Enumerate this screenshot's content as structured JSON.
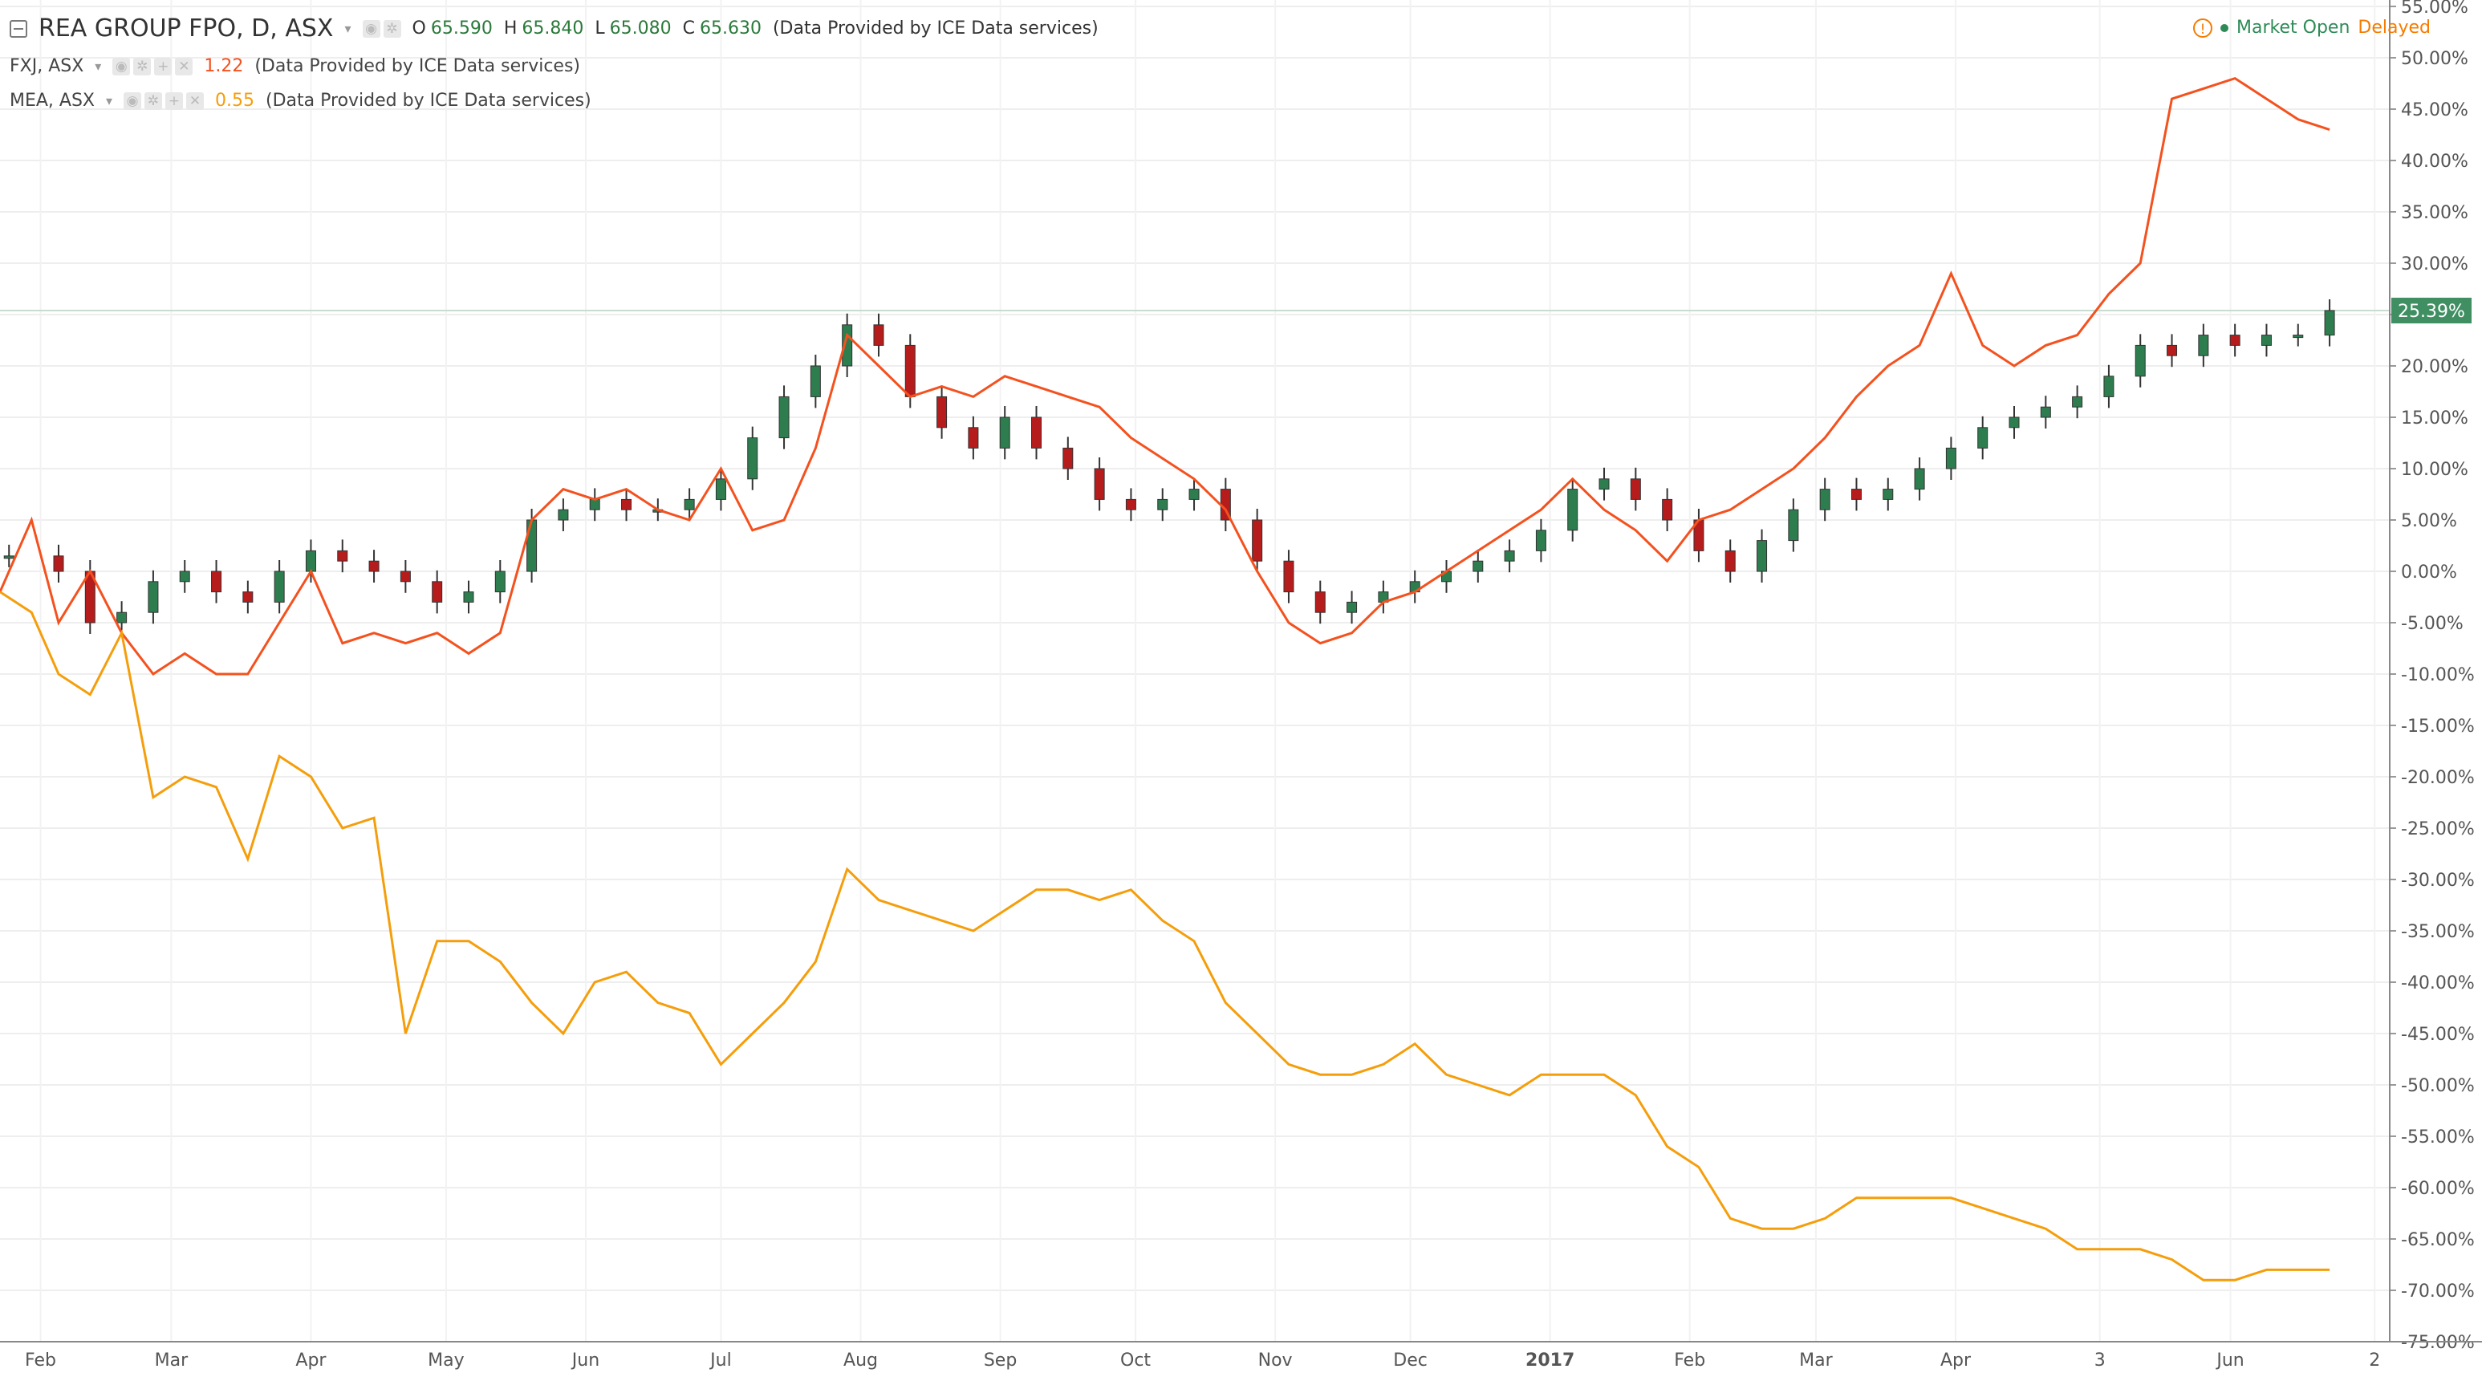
{
  "header": {
    "symbol": "REA GROUP FPO, D, ASX",
    "ohlc": [
      {
        "key": "O",
        "value": "65.590"
      },
      {
        "key": "H",
        "value": "65.840"
      },
      {
        "key": "L",
        "value": "65.080"
      },
      {
        "key": "C",
        "value": "65.630"
      }
    ],
    "provider": "(Data Provided by ICE Data services)",
    "compare": [
      {
        "symbol": "FXJ, ASX",
        "value": "1.22",
        "color": "#f4511e",
        "provider": "(Data Provided by ICE Data services)"
      },
      {
        "symbol": "MEA, ASX",
        "value": "0.55",
        "color": "#f59e0b",
        "provider": "(Data Provided by ICE Data services)"
      }
    ],
    "status_open": "Market Open",
    "status_delayed": "Delayed",
    "status_icon": "warning-icon",
    "colors": {
      "open": "#2e8b57",
      "delayed": "#f57c00"
    }
  },
  "chart_data": {
    "type": "line",
    "title": "",
    "xlabel": "",
    "ylabel": "",
    "y_unit": "%",
    "ylim": [
      -75,
      55
    ],
    "y_ticks": [
      55,
      50,
      45,
      40,
      35,
      30,
      25,
      20,
      15,
      10,
      5,
      0,
      -5,
      -10,
      -15,
      -20,
      -25,
      -30,
      -35,
      -40,
      -45,
      -50,
      -55,
      -60,
      -65,
      -70,
      -75
    ],
    "y_tick_labels": [
      "55.00%",
      "50.00%",
      "45.00%",
      "40.00%",
      "35.00%",
      "30.00%",
      "25.00%",
      "20.00%",
      "15.00%",
      "10.00%",
      "5.00%",
      "0.00%",
      "-5.00%",
      "-10.00%",
      "-15.00%",
      "-20.00%",
      "-25.00%",
      "-30.00%",
      "-35.00%",
      "-40.00%",
      "-45.00%",
      "-50.00%",
      "-55.00%",
      "-60.00%",
      "-65.00%",
      "-70.00%",
      "-75.00%"
    ],
    "x_ticks": [
      {
        "label": "Feb",
        "date": "2016-02-01",
        "bold": false
      },
      {
        "label": "Mar",
        "date": "2016-03-01",
        "bold": false
      },
      {
        "label": "Apr",
        "date": "2016-04-01",
        "bold": false
      },
      {
        "label": "May",
        "date": "2016-05-01",
        "bold": false
      },
      {
        "label": "Jun",
        "date": "2016-06-01",
        "bold": false
      },
      {
        "label": "Jul",
        "date": "2016-07-01",
        "bold": false
      },
      {
        "label": "Aug",
        "date": "2016-08-01",
        "bold": false
      },
      {
        "label": "Sep",
        "date": "2016-09-01",
        "bold": false
      },
      {
        "label": "Oct",
        "date": "2016-10-01",
        "bold": false
      },
      {
        "label": "Nov",
        "date": "2016-11-01",
        "bold": false
      },
      {
        "label": "Dec",
        "date": "2016-12-01",
        "bold": false
      },
      {
        "label": "2017",
        "date": "2017-01-01",
        "bold": true
      },
      {
        "label": "Feb",
        "date": "2017-02-01",
        "bold": false
      },
      {
        "label": "Mar",
        "date": "2017-03-01",
        "bold": false
      },
      {
        "label": "Apr",
        "date": "2017-04-01",
        "bold": false
      },
      {
        "label": "3",
        "date": "2017-05-03",
        "bold": false
      },
      {
        "label": "Jun",
        "date": "2017-06-01",
        "bold": false
      },
      {
        "label": "2",
        "date": "2017-07-03",
        "bold": false
      }
    ],
    "x_range": [
      "2016-01-23",
      "2017-07-01"
    ],
    "grid": true,
    "last_value_label": "25.39%",
    "last_value": 25.39,
    "series": [
      {
        "symbol": "REA",
        "kind": "candlestick",
        "up_color": "#2e7d4f",
        "down_color": "#b71c1c",
        "points": [
          [
            "2016-01-25",
            1.5
          ],
          [
            "2016-02-05",
            0
          ],
          [
            "2016-02-12",
            -5
          ],
          [
            "2016-02-19",
            -4
          ],
          [
            "2016-02-26",
            -1
          ],
          [
            "2016-03-04",
            0
          ],
          [
            "2016-03-11",
            -2
          ],
          [
            "2016-03-18",
            -3
          ],
          [
            "2016-03-25",
            0
          ],
          [
            "2016-04-01",
            2
          ],
          [
            "2016-04-08",
            1
          ],
          [
            "2016-04-15",
            0
          ],
          [
            "2016-04-22",
            -1
          ],
          [
            "2016-04-29",
            -3
          ],
          [
            "2016-05-06",
            -2
          ],
          [
            "2016-05-13",
            0
          ],
          [
            "2016-05-20",
            5
          ],
          [
            "2016-05-27",
            6
          ],
          [
            "2016-06-03",
            7
          ],
          [
            "2016-06-10",
            6
          ],
          [
            "2016-06-17",
            6
          ],
          [
            "2016-06-24",
            7
          ],
          [
            "2016-07-01",
            9
          ],
          [
            "2016-07-08",
            13
          ],
          [
            "2016-07-15",
            17
          ],
          [
            "2016-07-22",
            20
          ],
          [
            "2016-07-29",
            24
          ],
          [
            "2016-08-05",
            22
          ],
          [
            "2016-08-12",
            17
          ],
          [
            "2016-08-19",
            14
          ],
          [
            "2016-08-26",
            12
          ],
          [
            "2016-09-02",
            15
          ],
          [
            "2016-09-09",
            12
          ],
          [
            "2016-09-16",
            10
          ],
          [
            "2016-09-23",
            7
          ],
          [
            "2016-09-30",
            6
          ],
          [
            "2016-10-07",
            7
          ],
          [
            "2016-10-14",
            8
          ],
          [
            "2016-10-21",
            5
          ],
          [
            "2016-10-28",
            1
          ],
          [
            "2016-11-04",
            -2
          ],
          [
            "2016-11-11",
            -4
          ],
          [
            "2016-11-18",
            -3
          ],
          [
            "2016-11-25",
            -2
          ],
          [
            "2016-12-02",
            -1
          ],
          [
            "2016-12-09",
            0
          ],
          [
            "2016-12-16",
            1
          ],
          [
            "2016-12-23",
            2
          ],
          [
            "2016-12-30",
            4
          ],
          [
            "2017-01-06",
            8
          ],
          [
            "2017-01-13",
            9
          ],
          [
            "2017-01-20",
            7
          ],
          [
            "2017-01-27",
            5
          ],
          [
            "2017-02-03",
            2
          ],
          [
            "2017-02-10",
            0
          ],
          [
            "2017-02-17",
            3
          ],
          [
            "2017-02-24",
            6
          ],
          [
            "2017-03-03",
            8
          ],
          [
            "2017-03-10",
            7
          ],
          [
            "2017-03-17",
            8
          ],
          [
            "2017-03-24",
            10
          ],
          [
            "2017-03-31",
            12
          ],
          [
            "2017-04-07",
            14
          ],
          [
            "2017-04-14",
            15
          ],
          [
            "2017-04-21",
            16
          ],
          [
            "2017-04-28",
            17
          ],
          [
            "2017-05-05",
            19
          ],
          [
            "2017-05-12",
            22
          ],
          [
            "2017-05-19",
            21
          ],
          [
            "2017-05-26",
            23
          ],
          [
            "2017-06-02",
            22
          ],
          [
            "2017-06-09",
            23
          ],
          [
            "2017-06-16",
            23
          ],
          [
            "2017-06-23",
            25.39
          ]
        ]
      },
      {
        "symbol": "FXJ",
        "kind": "line",
        "color": "#f4511e",
        "points": [
          [
            "2016-01-23",
            -2
          ],
          [
            "2016-01-30",
            5
          ],
          [
            "2016-02-05",
            -5
          ],
          [
            "2016-02-12",
            0
          ],
          [
            "2016-02-19",
            -6
          ],
          [
            "2016-02-26",
            -10
          ],
          [
            "2016-03-04",
            -8
          ],
          [
            "2016-03-11",
            -10
          ],
          [
            "2016-03-18",
            -10
          ],
          [
            "2016-03-25",
            -5
          ],
          [
            "2016-04-01",
            0
          ],
          [
            "2016-04-08",
            -7
          ],
          [
            "2016-04-15",
            -6
          ],
          [
            "2016-04-22",
            -7
          ],
          [
            "2016-04-29",
            -6
          ],
          [
            "2016-05-06",
            -8
          ],
          [
            "2016-05-13",
            -6
          ],
          [
            "2016-05-20",
            5
          ],
          [
            "2016-05-27",
            8
          ],
          [
            "2016-06-03",
            7
          ],
          [
            "2016-06-10",
            8
          ],
          [
            "2016-06-17",
            6
          ],
          [
            "2016-06-24",
            5
          ],
          [
            "2016-07-01",
            10
          ],
          [
            "2016-07-08",
            4
          ],
          [
            "2016-07-15",
            5
          ],
          [
            "2016-07-22",
            12
          ],
          [
            "2016-07-29",
            23
          ],
          [
            "2016-08-05",
            20
          ],
          [
            "2016-08-12",
            17
          ],
          [
            "2016-08-19",
            18
          ],
          [
            "2016-08-26",
            17
          ],
          [
            "2016-09-02",
            19
          ],
          [
            "2016-09-09",
            18
          ],
          [
            "2016-09-16",
            17
          ],
          [
            "2016-09-23",
            16
          ],
          [
            "2016-09-30",
            13
          ],
          [
            "2016-10-07",
            11
          ],
          [
            "2016-10-14",
            9
          ],
          [
            "2016-10-21",
            6
          ],
          [
            "2016-10-28",
            0
          ],
          [
            "2016-11-04",
            -5
          ],
          [
            "2016-11-11",
            -7
          ],
          [
            "2016-11-18",
            -6
          ],
          [
            "2016-11-25",
            -3
          ],
          [
            "2016-12-02",
            -2
          ],
          [
            "2016-12-09",
            0
          ],
          [
            "2016-12-16",
            2
          ],
          [
            "2016-12-23",
            4
          ],
          [
            "2016-12-30",
            6
          ],
          [
            "2017-01-06",
            9
          ],
          [
            "2017-01-13",
            6
          ],
          [
            "2017-01-20",
            4
          ],
          [
            "2017-01-27",
            1
          ],
          [
            "2017-02-03",
            5
          ],
          [
            "2017-02-10",
            6
          ],
          [
            "2017-02-17",
            8
          ],
          [
            "2017-02-24",
            10
          ],
          [
            "2017-03-03",
            13
          ],
          [
            "2017-03-10",
            17
          ],
          [
            "2017-03-17",
            20
          ],
          [
            "2017-03-24",
            22
          ],
          [
            "2017-03-31",
            29
          ],
          [
            "2017-04-07",
            22
          ],
          [
            "2017-04-14",
            20
          ],
          [
            "2017-04-21",
            22
          ],
          [
            "2017-04-28",
            23
          ],
          [
            "2017-05-05",
            27
          ],
          [
            "2017-05-12",
            30
          ],
          [
            "2017-05-19",
            46
          ],
          [
            "2017-05-26",
            47
          ],
          [
            "2017-06-02",
            48
          ],
          [
            "2017-06-09",
            46
          ],
          [
            "2017-06-16",
            44
          ],
          [
            "2017-06-23",
            43
          ]
        ]
      },
      {
        "symbol": "MEA",
        "kind": "line",
        "color": "#f59e0b",
        "points": [
          [
            "2016-01-23",
            -2
          ],
          [
            "2016-01-30",
            -4
          ],
          [
            "2016-02-05",
            -10
          ],
          [
            "2016-02-12",
            -12
          ],
          [
            "2016-02-19",
            -6
          ],
          [
            "2016-02-26",
            -22
          ],
          [
            "2016-03-04",
            -20
          ],
          [
            "2016-03-11",
            -21
          ],
          [
            "2016-03-18",
            -28
          ],
          [
            "2016-03-25",
            -18
          ],
          [
            "2016-04-01",
            -20
          ],
          [
            "2016-04-08",
            -25
          ],
          [
            "2016-04-15",
            -24
          ],
          [
            "2016-04-22",
            -45
          ],
          [
            "2016-04-29",
            -36
          ],
          [
            "2016-05-06",
            -36
          ],
          [
            "2016-05-13",
            -38
          ],
          [
            "2016-05-20",
            -42
          ],
          [
            "2016-05-27",
            -45
          ],
          [
            "2016-06-03",
            -40
          ],
          [
            "2016-06-10",
            -39
          ],
          [
            "2016-06-17",
            -42
          ],
          [
            "2016-06-24",
            -43
          ],
          [
            "2016-07-01",
            -48
          ],
          [
            "2016-07-08",
            -45
          ],
          [
            "2016-07-15",
            -42
          ],
          [
            "2016-07-22",
            -38
          ],
          [
            "2016-07-29",
            -29
          ],
          [
            "2016-08-05",
            -32
          ],
          [
            "2016-08-12",
            -33
          ],
          [
            "2016-08-19",
            -34
          ],
          [
            "2016-08-26",
            -35
          ],
          [
            "2016-09-02",
            -33
          ],
          [
            "2016-09-09",
            -31
          ],
          [
            "2016-09-16",
            -31
          ],
          [
            "2016-09-23",
            -32
          ],
          [
            "2016-09-30",
            -31
          ],
          [
            "2016-10-07",
            -34
          ],
          [
            "2016-10-14",
            -36
          ],
          [
            "2016-10-21",
            -42
          ],
          [
            "2016-10-28",
            -45
          ],
          [
            "2016-11-04",
            -48
          ],
          [
            "2016-11-11",
            -49
          ],
          [
            "2016-11-18",
            -49
          ],
          [
            "2016-11-25",
            -48
          ],
          [
            "2016-12-02",
            -46
          ],
          [
            "2016-12-09",
            -49
          ],
          [
            "2016-12-16",
            -50
          ],
          [
            "2016-12-23",
            -51
          ],
          [
            "2016-12-30",
            -49
          ],
          [
            "2017-01-06",
            -49
          ],
          [
            "2017-01-13",
            -49
          ],
          [
            "2017-01-20",
            -51
          ],
          [
            "2017-01-27",
            -56
          ],
          [
            "2017-02-03",
            -58
          ],
          [
            "2017-02-10",
            -63
          ],
          [
            "2017-02-17",
            -64
          ],
          [
            "2017-02-24",
            -64
          ],
          [
            "2017-03-03",
            -63
          ],
          [
            "2017-03-10",
            -61
          ],
          [
            "2017-03-17",
            -61
          ],
          [
            "2017-03-24",
            -61
          ],
          [
            "2017-03-31",
            -61
          ],
          [
            "2017-04-07",
            -62
          ],
          [
            "2017-04-14",
            -63
          ],
          [
            "2017-04-21",
            -64
          ],
          [
            "2017-04-28",
            -66
          ],
          [
            "2017-05-05",
            -66
          ],
          [
            "2017-05-12",
            -66
          ],
          [
            "2017-05-19",
            -67
          ],
          [
            "2017-05-26",
            -69
          ],
          [
            "2017-06-02",
            -69
          ],
          [
            "2017-06-09",
            -68
          ],
          [
            "2017-06-16",
            -68
          ],
          [
            "2017-06-23",
            -68
          ]
        ]
      }
    ]
  }
}
